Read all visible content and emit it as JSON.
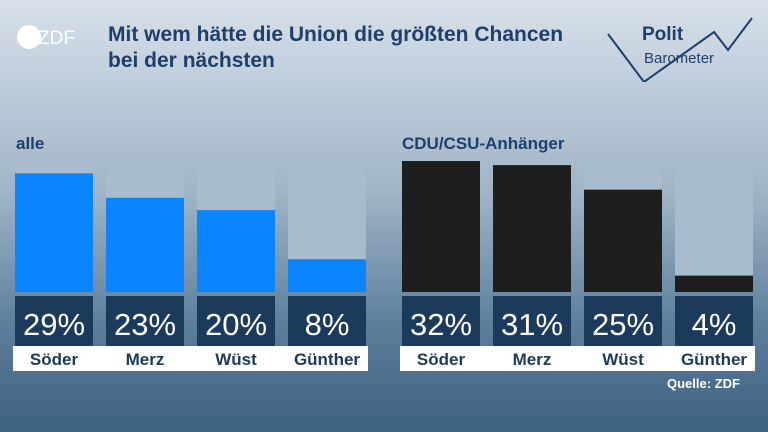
{
  "title": "Mit wem hätte die Union die größten Chancen bei der nächsten",
  "logo_text": "ZDF",
  "brand": {
    "line1": "Polit",
    "line2": "Barometer"
  },
  "source": "Quelle: ZDF",
  "colors": {
    "all_bar": "#0a84ff",
    "cdu_bar": "#1e1e1e",
    "track": "#a9bccd",
    "label_box": "#1b3a5c",
    "name_bg": "#ffffff",
    "name_text": "#1b3a5c"
  },
  "chart_data": [
    {
      "type": "bar",
      "title": "alle",
      "categories": [
        "Söder",
        "Merz",
        "Wüst",
        "Günther"
      ],
      "values": [
        29,
        23,
        20,
        8
      ],
      "value_labels": [
        "29%",
        "23%",
        "20%",
        "8%"
      ],
      "ylim": [
        0,
        32
      ],
      "grid": false,
      "legend": "none"
    },
    {
      "type": "bar",
      "title": "CDU/CSU-Anhänger",
      "categories": [
        "Söder",
        "Merz",
        "Wüst",
        "Günther"
      ],
      "values": [
        32,
        31,
        25,
        4
      ],
      "value_labels": [
        "32%",
        "31%",
        "25%",
        "4%"
      ],
      "ylim": [
        0,
        32
      ],
      "grid": false,
      "legend": "none"
    }
  ]
}
